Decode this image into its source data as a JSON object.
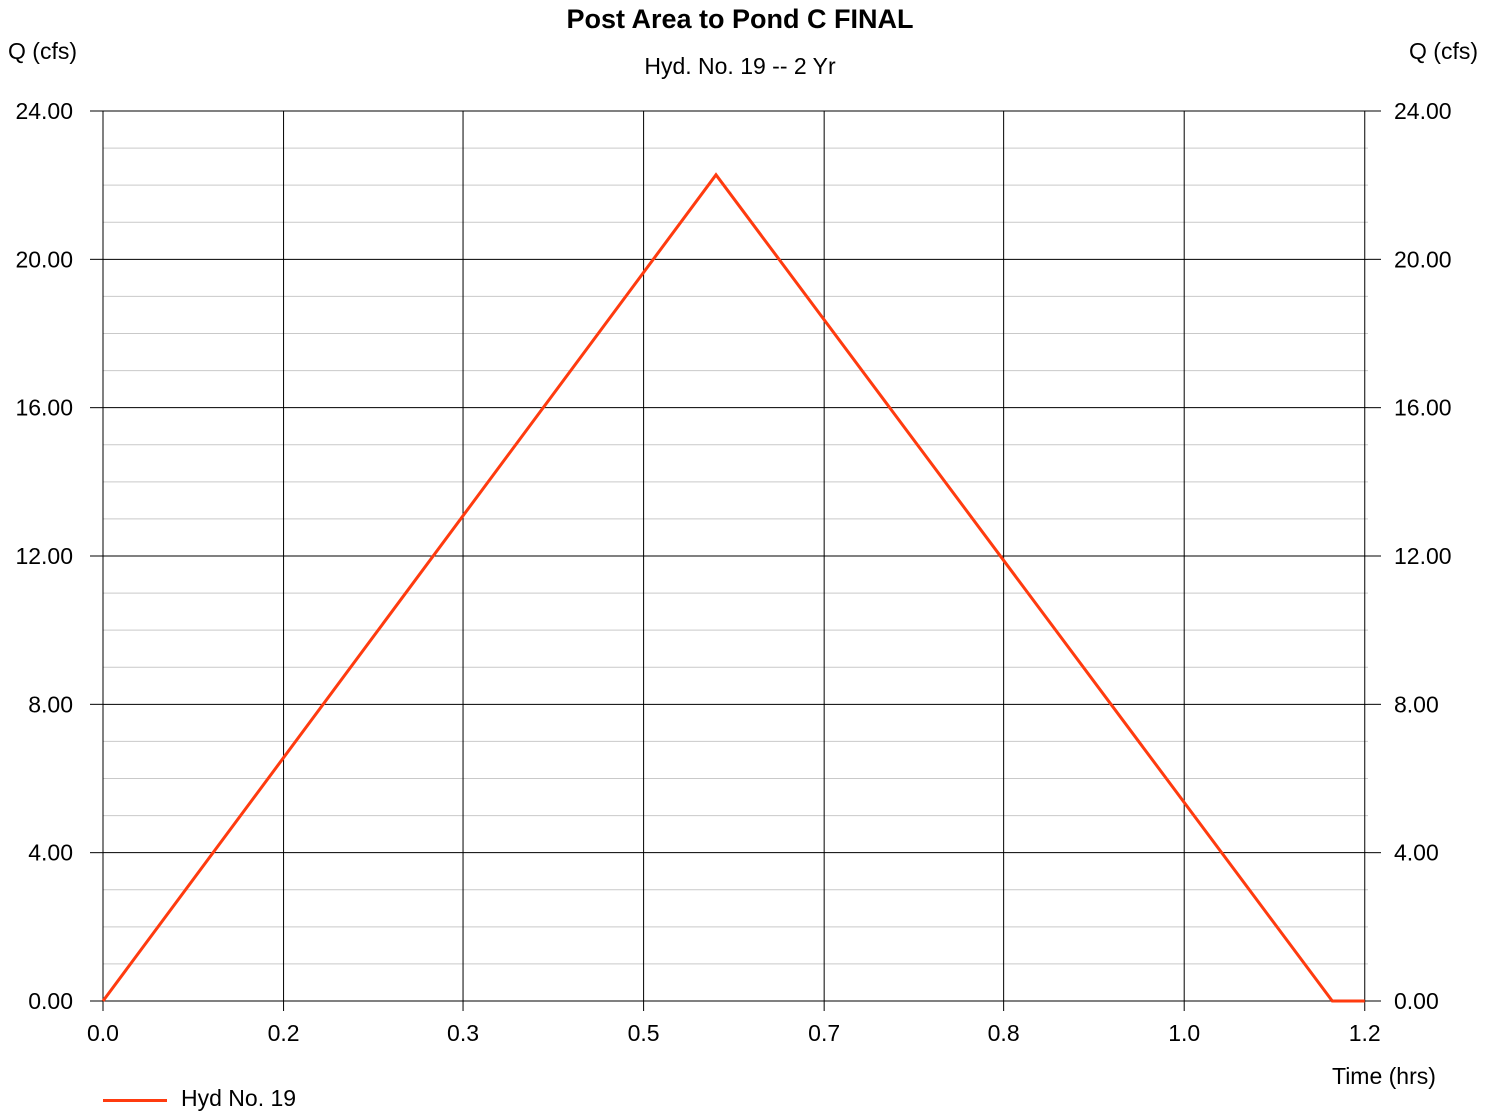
{
  "chart_data": {
    "type": "line",
    "title": "Post Area to Pond C FINAL",
    "subtitle": "Hyd. No. 19 -- 2 Yr",
    "ylabel_left": "Q (cfs)",
    "ylabel_right": "Q (cfs)",
    "xlabel": "Time (hrs)",
    "xlim": [
      0,
      1.17
    ],
    "ylim": [
      0,
      24
    ],
    "x_ticks": [
      0.0,
      0.167,
      0.333,
      0.5,
      0.667,
      0.833,
      1.0,
      1.167
    ],
    "x_tick_labels": [
      "0.0",
      "0.2",
      "0.3",
      "0.5",
      "0.7",
      "0.8",
      "1.0",
      "1.2"
    ],
    "y_ticks": [
      0,
      4,
      8,
      12,
      16,
      20,
      24
    ],
    "y_tick_labels": [
      "0.00",
      "4.00",
      "8.00",
      "12.00",
      "16.00",
      "20.00",
      "24.00"
    ],
    "y_minor_step": 1,
    "grid": true,
    "legend_position": "bottom-left",
    "series": [
      {
        "name": "Hyd No. 19",
        "color": "#ff3b0f",
        "x": [
          0.0,
          0.567,
          1.137,
          1.167
        ],
        "y": [
          0.0,
          22.28,
          0.0,
          0.0
        ]
      }
    ]
  }
}
